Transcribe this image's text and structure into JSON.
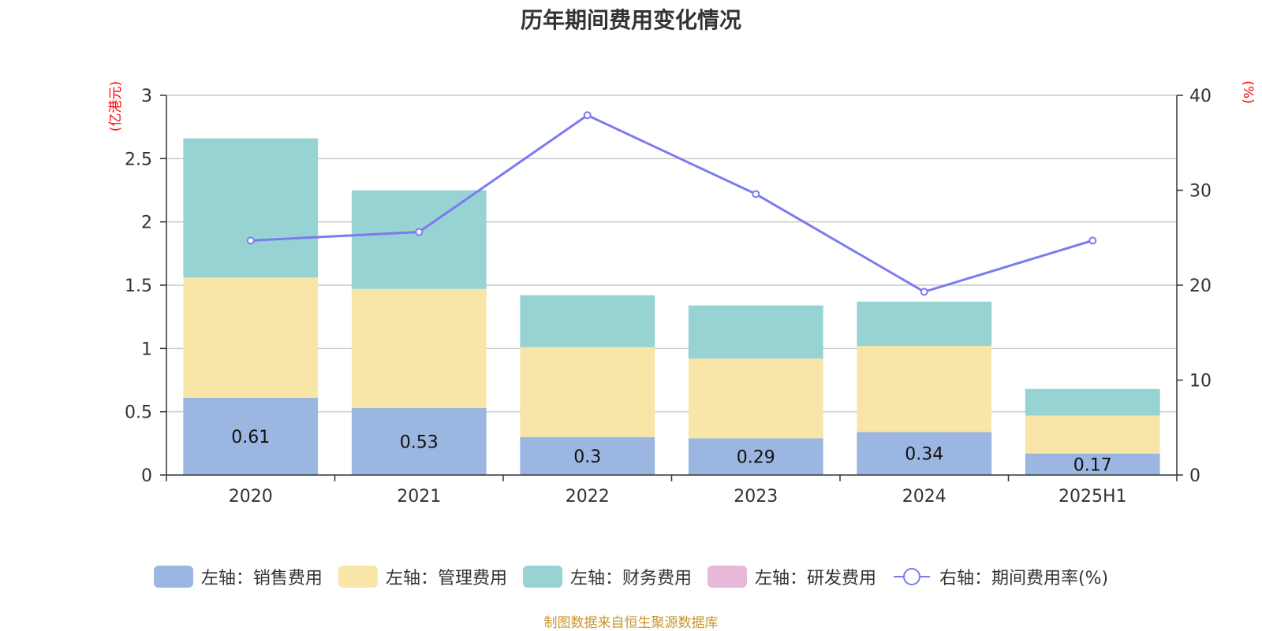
{
  "chart_data": {
    "type": "bar",
    "stacked": true,
    "title": "历年期间费用变化情况",
    "categories": [
      "2020",
      "2021",
      "2022",
      "2023",
      "2024",
      "2025H1"
    ],
    "series": [
      {
        "name": "左轴：销售费用",
        "axis": "left",
        "color": "#9bb6e1",
        "values": [
          0.61,
          0.53,
          0.3,
          0.29,
          0.34,
          0.17
        ],
        "labels": [
          "0.61",
          "0.53",
          "0.3",
          "0.29",
          "0.34",
          "0.17"
        ]
      },
      {
        "name": "左轴：管理费用",
        "axis": "left",
        "color": "#f7e6a8",
        "values": [
          0.95,
          0.94,
          0.71,
          0.63,
          0.68,
          0.3
        ]
      },
      {
        "name": "左轴：财务费用",
        "axis": "left",
        "color": "#98d3d4",
        "values": [
          1.1,
          0.78,
          0.41,
          0.42,
          0.35,
          0.21
        ]
      },
      {
        "name": "左轴：研发费用",
        "axis": "left",
        "color": "#e8b8d8",
        "values": [
          0,
          0,
          0,
          0,
          0,
          0
        ]
      }
    ],
    "line_series": {
      "name": "右轴：期间费用率(%)",
      "axis": "right",
      "color": "#7b7bef",
      "values": [
        24.7,
        25.6,
        37.9,
        29.6,
        19.3,
        24.7
      ]
    },
    "left_axis": {
      "unit": "(亿港元)",
      "ylim": [
        0,
        3
      ],
      "ticks": [
        "0",
        "0.5",
        "1",
        "1.5",
        "2",
        "2.5",
        "3"
      ]
    },
    "right_axis": {
      "unit": "(%)",
      "ylim": [
        0,
        40
      ],
      "ticks": [
        "0",
        "10",
        "20",
        "30",
        "40"
      ]
    },
    "legend_position": "bottom",
    "grid": true
  },
  "source": "制图数据来自恒生聚源数据库"
}
